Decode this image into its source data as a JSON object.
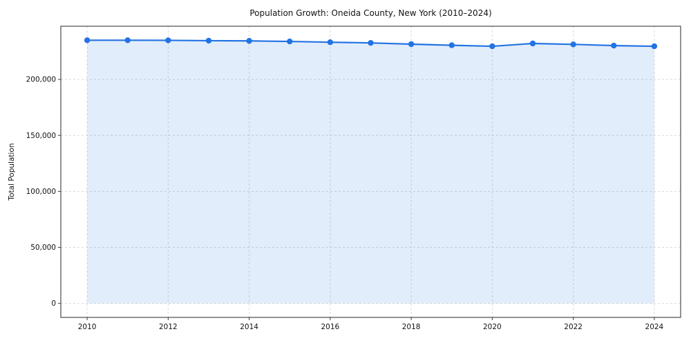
{
  "chart_data": {
    "type": "line",
    "title": "Population Growth: Oneida County, New York (2010–2024)",
    "xlabel": "",
    "ylabel": "Total Population",
    "x": [
      2010,
      2011,
      2012,
      2013,
      2014,
      2015,
      2016,
      2017,
      2018,
      2019,
      2020,
      2021,
      2022,
      2023,
      2024
    ],
    "values": [
      235000,
      235000,
      234900,
      234600,
      234400,
      233900,
      233200,
      232600,
      231500,
      230500,
      229600,
      232100,
      231300,
      230200,
      229600
    ],
    "xticks": [
      2010,
      2012,
      2014,
      2016,
      2018,
      2020,
      2022,
      2024
    ],
    "xtick_labels": [
      "2010",
      "2012",
      "2014",
      "2016",
      "2018",
      "2020",
      "2022",
      "2024"
    ],
    "yticks": [
      0,
      50000,
      100000,
      150000,
      200000
    ],
    "ytick_labels": [
      "0",
      "50,000",
      "100,000",
      "150,000",
      "200,000"
    ],
    "xlim": [
      2009.35,
      2024.65
    ],
    "ylim": [
      -12500,
      247500
    ],
    "grid": true,
    "grid_style": "dashed",
    "legend": "none",
    "fill_to_zero": true,
    "colors": {
      "line": "#2273e3",
      "marker": "#2273e3",
      "fill_opacity": "0.13",
      "grid": "#d8d8d8",
      "axis": "#3a3a3a",
      "text": "#111111",
      "background": "#ffffff"
    }
  }
}
